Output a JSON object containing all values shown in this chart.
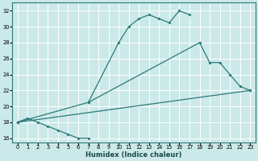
{
  "xlabel": "Humidex (Indice chaleur)",
  "xlim": [
    -0.5,
    23.5
  ],
  "ylim": [
    15.5,
    33
  ],
  "xticks": [
    0,
    1,
    2,
    3,
    4,
    5,
    6,
    7,
    8,
    9,
    10,
    11,
    12,
    13,
    14,
    15,
    16,
    17,
    18,
    19,
    20,
    21,
    22,
    23
  ],
  "yticks": [
    16,
    18,
    20,
    22,
    24,
    26,
    28,
    30,
    32
  ],
  "bg_color": "#cce9e9",
  "grid_color": "#ffffff",
  "line_color": "#2a7a78",
  "line1_x": [
    0,
    1,
    2,
    3,
    4,
    5,
    6,
    7
  ],
  "line1_y": [
    18,
    18.5,
    18,
    17.5,
    17,
    16.5,
    16,
    16
  ],
  "line2_x": [
    0,
    7,
    10,
    11,
    12,
    13,
    14,
    15,
    16,
    17
  ],
  "line2_y": [
    18,
    20.5,
    28,
    30,
    31,
    31.5,
    31,
    30.5,
    32,
    31.5
  ],
  "line3_x": [
    0,
    23
  ],
  "line3_y": [
    18,
    22
  ],
  "line4_x": [
    7,
    18,
    19,
    20,
    21,
    22,
    23
  ],
  "line4_y": [
    20.5,
    28,
    25.5,
    25.5,
    24,
    22.5,
    22
  ]
}
